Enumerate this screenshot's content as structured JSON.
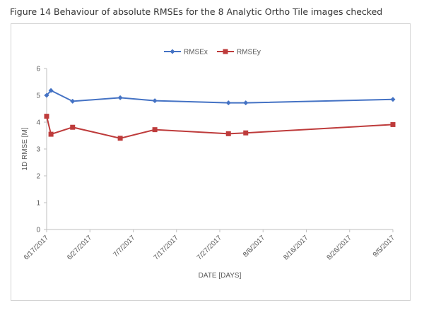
{
  "caption": "Figure 14 Behaviour of absolute RMSEs for the 8 Analytic Ortho Tile images checked",
  "chart_data": {
    "type": "line",
    "title": "",
    "xlabel": "DATE [DAYS]",
    "ylabel": "1D RMSE [M]",
    "ylim": [
      0,
      6
    ],
    "yticks": [
      0,
      1,
      2,
      3,
      4,
      5,
      6
    ],
    "xlim": [
      "2017-06-17",
      "2017-09-05"
    ],
    "xticks": [
      "2017-06-17",
      "2017-06-27",
      "2017-07-07",
      "2017-07-17",
      "2017-07-27",
      "2017-08-06",
      "2017-08-16",
      "2017-08-26",
      "2017-09-05"
    ],
    "xtick_labels": [
      "6/17/2017",
      "6/27/2017",
      "7/7/2017",
      "7/17/2017",
      "7/27/2017",
      "8/6/2017",
      "8/16/2017",
      "8/26/2017",
      "9/5/2017"
    ],
    "grid": false,
    "legend_position": "top",
    "series": [
      {
        "name": "RMSEx",
        "color": "#4472c4",
        "marker": "diamond",
        "x": [
          "2017-06-17",
          "2017-06-18",
          "2017-06-23",
          "2017-07-04",
          "2017-07-12",
          "2017-07-29",
          "2017-08-02",
          "2017-09-05"
        ],
        "values": [
          5.0,
          5.18,
          4.78,
          4.91,
          4.8,
          4.72,
          4.72,
          4.85
        ]
      },
      {
        "name": "RMSEy",
        "color": "#be3b3b",
        "marker": "square",
        "x": [
          "2017-06-17",
          "2017-06-18",
          "2017-06-23",
          "2017-07-04",
          "2017-07-12",
          "2017-07-29",
          "2017-08-02",
          "2017-09-05"
        ],
        "values": [
          4.22,
          3.55,
          3.81,
          3.4,
          3.72,
          3.57,
          3.6,
          3.91
        ]
      }
    ]
  }
}
